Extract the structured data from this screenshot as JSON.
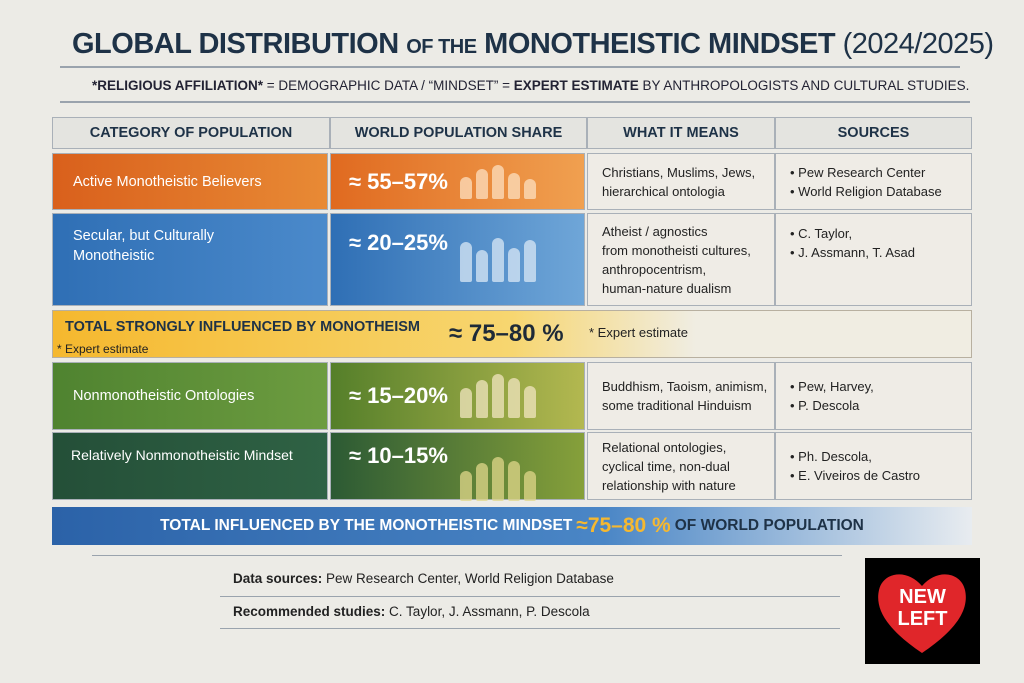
{
  "title": {
    "part1": "GLOBAL DISTRIBUTION",
    "part2": "OF THE",
    "part3": "MONOTHEISTIC MINDSET",
    "part4": "(2024/2025)"
  },
  "subtitle": {
    "b1": "*RELIGIOUS AFFILIATION*",
    "t1": " = DEMOGRAPHIC DATA / “MINDSET” = ",
    "b2": "EXPERT ESTIMATE",
    "t2": " BY ANTHROPOLOGISTS AND CULTURAL STUDIES."
  },
  "headers": [
    "CATEGORY OF POPULATION",
    "WORLD POPULATION SHARE",
    "WHAT IT MEANS",
    "SOURCES"
  ],
  "rows": [
    {
      "category": "Active Monotheistic Believers",
      "share": "≈ 55–57%",
      "meaning": [
        "Christians, Muslims, Jews,",
        "hierarchical ontologia"
      ],
      "sources": [
        "• Pew Research Center",
        "• World Religion Database"
      ]
    },
    {
      "category": "Secular, but Culturally Monotheistic",
      "share": "≈ 20–25%",
      "meaning": [
        "Atheist / agnostics",
        "from monotheisti cultures,",
        "anthropocentrism,",
        "human-nature dualism"
      ],
      "sources": [
        "• C. Taylor,",
        "• J. Assmann, T. Asad"
      ]
    },
    {
      "category": "Nonmonotheistic Ontologies",
      "share": "≈ 15–20%",
      "meaning": [
        "Buddhism, Taoism, animism,",
        "some traditional Hinduism"
      ],
      "sources": [
        "• Pew, Harvey,",
        "• P. Descola"
      ]
    },
    {
      "category": "Relatively Nonmonotheistic Mindset",
      "share": "≈ 10–15%",
      "meaning": [
        "Relational ontologies,",
        "cyclical time, non-dual",
        "relationship with nature"
      ],
      "sources": [
        "• Ph. Descola,",
        "• E. Viveiros de Castro"
      ]
    }
  ],
  "total_row": {
    "label": "TOTAL STRONGLY INFLUENCED BY MONOTHEISM",
    "note": "* Expert estimate",
    "value": "≈ 75–80 %",
    "note2": "* Expert estimate"
  },
  "banner": {
    "t1": "TOTAL INFLUENCED BY THE MONOTHEISTIC MINDSET",
    "value": "≈75–80 %",
    "t2": "OF WORLD POPULATION"
  },
  "footer": {
    "data_label": "Data sources:",
    "data_value": " Pew Research Center, World Religion Database",
    "studies_label": "Recommended studies:",
    "studies_value": " C. Taylor, J. Assmann, P. Descola"
  },
  "logo": {
    "line1": "NEW",
    "line2": "LEFT"
  },
  "colors": {
    "orange": "#e07424",
    "blue": "#3c7ec0",
    "yellow": "#f3c340",
    "green": "#5f8f37",
    "darkgreen": "#2f5e3a",
    "navy": "#1e3247"
  }
}
